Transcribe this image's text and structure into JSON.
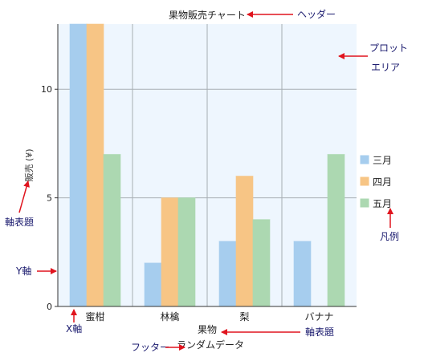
{
  "chart_data": {
    "type": "bar",
    "title": "果物販売チャート",
    "footer": "ランダムデータ",
    "xlabel": "果物",
    "ylabel": "販売 (¥)",
    "categories": [
      "蜜柑",
      "林檎",
      "梨",
      "バナナ"
    ],
    "series": [
      {
        "name": "三月",
        "values": [
          13,
          2,
          3,
          3
        ],
        "color": "#a6cdee"
      },
      {
        "name": "四月",
        "values": [
          13,
          5,
          6,
          0
        ],
        "color": "#f7c585"
      },
      {
        "name": "五月",
        "values": [
          7,
          5,
          4,
          7
        ],
        "color": "#acd8b1"
      }
    ],
    "yticks": [
      0,
      5,
      10
    ],
    "ylim": [
      0,
      13
    ],
    "grid": true,
    "legend_position": "right"
  },
  "annotations": {
    "header": "ヘッダー",
    "plot_area_line1": "プロット",
    "plot_area_line2": "エリア",
    "axis_title_y": "軸表題",
    "legend": "凡例",
    "y_axis": "Y軸",
    "x_axis": "X軸",
    "axis_title_x": "軸表題",
    "footer": "フッター"
  },
  "colors": {
    "plot_background": "#eef6fe",
    "grid": "#a7aeb3",
    "axis": "#333333",
    "annotation_text": "#1a1a6e",
    "arrow": "#e0141e"
  }
}
